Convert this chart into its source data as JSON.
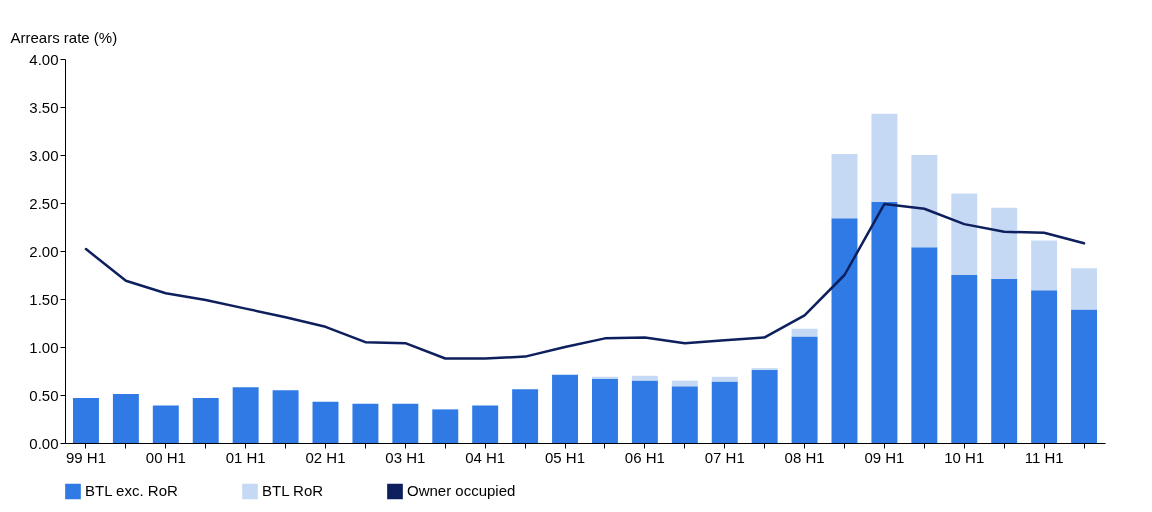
{
  "chart_data": {
    "type": "bar",
    "stacked": true,
    "ylabel": "Arrears rate (%)",
    "categories": [
      "99 H1",
      null,
      "00 H1",
      null,
      "01 H1",
      null,
      "02 H1",
      null,
      "03 H1",
      null,
      "04 H1",
      null,
      "05 H1",
      null,
      "06 H1",
      null,
      "07 H1",
      null,
      "08 H1",
      null,
      "09 H1",
      null,
      "10 H1",
      null,
      "11 H1",
      null
    ],
    "series": [
      {
        "name": "BTL exc. RoR",
        "color": "#2f7ae5",
        "values": [
          0.47,
          0.51,
          0.39,
          0.47,
          0.58,
          0.55,
          0.43,
          0.41,
          0.41,
          0.35,
          0.39,
          0.56,
          0.71,
          0.67,
          0.65,
          0.59,
          0.64,
          0.76,
          1.11,
          2.34,
          2.51,
          2.04,
          1.75,
          1.71,
          1.59,
          1.39
        ]
      },
      {
        "name": "BTL RoR",
        "color": "#c5d9f5",
        "values": [
          null,
          null,
          null,
          null,
          null,
          null,
          null,
          null,
          null,
          null,
          null,
          null,
          null,
          0.02,
          0.05,
          0.06,
          0.05,
          0.02,
          0.08,
          0.67,
          0.92,
          0.96,
          0.85,
          0.74,
          0.52,
          0.43
        ]
      },
      {
        "name": "Owner occupied",
        "type": "line",
        "color": "#0d1f5c",
        "values": [
          2.02,
          1.69,
          1.56,
          1.49,
          1.4,
          1.31,
          1.21,
          1.05,
          1.04,
          0.88,
          0.88,
          0.9,
          1.0,
          1.09,
          1.1,
          1.04,
          1.07,
          1.1,
          1.33,
          1.75,
          2.49,
          2.44,
          2.28,
          2.2,
          2.19,
          2.08
        ]
      }
    ],
    "ylim": [
      0,
      4
    ],
    "yticks": [
      {
        "value": 0,
        "label": "0.00"
      },
      {
        "value": 0.5,
        "label": "0.50"
      },
      {
        "value": 1,
        "label": "1.00"
      },
      {
        "value": 1.5,
        "label": "1.50"
      },
      {
        "value": 2,
        "label": "2.00"
      },
      {
        "value": 2.5,
        "label": "2.50"
      },
      {
        "value": 3,
        "label": "3.00"
      },
      {
        "value": 3.5,
        "label": "3.50"
      },
      {
        "value": 4,
        "label": "4.00"
      }
    ],
    "grid": false,
    "legend": "bottom",
    "marker": "none",
    "line_style": "solid"
  }
}
